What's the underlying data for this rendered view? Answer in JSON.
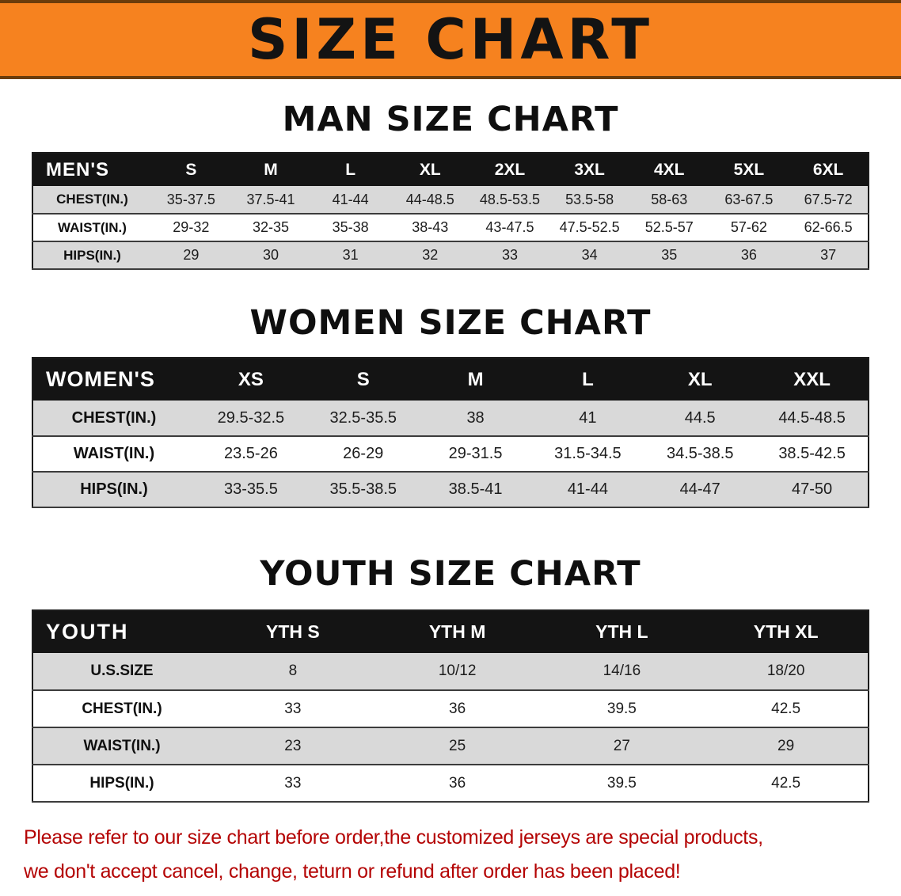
{
  "banner": {
    "title": "SIZE CHART"
  },
  "sections": {
    "men": {
      "heading": "MAN SIZE CHART",
      "table": {
        "label": "MEN'S",
        "columns": [
          "S",
          "M",
          "L",
          "XL",
          "2XL",
          "3XL",
          "4XL",
          "5XL",
          "6XL"
        ],
        "rows": [
          {
            "label": "CHEST(IN.)",
            "values": [
              "35-37.5",
              "37.5-41",
              "41-44",
              "44-48.5",
              "48.5-53.5",
              "53.5-58",
              "58-63",
              "63-67.5",
              "67.5-72"
            ]
          },
          {
            "label": "WAIST(IN.)",
            "values": [
              "29-32",
              "32-35",
              "35-38",
              "38-43",
              "43-47.5",
              "47.5-52.5",
              "52.5-57",
              "57-62",
              "62-66.5"
            ]
          },
          {
            "label": "HIPS(IN.)",
            "values": [
              "29",
              "30",
              "31",
              "32",
              "33",
              "34",
              "35",
              "36",
              "37"
            ]
          }
        ]
      }
    },
    "women": {
      "heading": "WOMEN SIZE CHART",
      "table": {
        "label": "WOMEN'S",
        "columns": [
          "XS",
          "S",
          "M",
          "L",
          "XL",
          "XXL"
        ],
        "rows": [
          {
            "label": "CHEST(IN.)",
            "values": [
              "29.5-32.5",
              "32.5-35.5",
              "38",
              "41",
              "44.5",
              "44.5-48.5"
            ]
          },
          {
            "label": "WAIST(IN.)",
            "values": [
              "23.5-26",
              "26-29",
              "29-31.5",
              "31.5-34.5",
              "34.5-38.5",
              "38.5-42.5"
            ]
          },
          {
            "label": "HIPS(IN.)",
            "values": [
              "33-35.5",
              "35.5-38.5",
              "38.5-41",
              "41-44",
              "44-47",
              "47-50"
            ]
          }
        ]
      }
    },
    "youth": {
      "heading": "YOUTH SIZE CHART",
      "table": {
        "label": "YOUTH",
        "columns": [
          "YTH S",
          "YTH M",
          "YTH L",
          "YTH XL"
        ],
        "rows": [
          {
            "label": "U.S.SIZE",
            "values": [
              "8",
              "10/12",
              "14/16",
              "18/20"
            ]
          },
          {
            "label": "CHEST(IN.)",
            "values": [
              "33",
              "36",
              "39.5",
              "42.5"
            ]
          },
          {
            "label": "WAIST(IN.)",
            "values": [
              "23",
              "25",
              "27",
              "29"
            ]
          },
          {
            "label": "HIPS(IN.)",
            "values": [
              "33",
              "36",
              "39.5",
              "42.5"
            ]
          }
        ]
      }
    }
  },
  "footer": {
    "line1": "Please refer to our size chart before order,the customized jerseys are special products,",
    "line2": "we don't accept cancel, change, teturn or refund after order has been placed!"
  },
  "colors": {
    "banner_orange": "#f6821f",
    "table_header_black": "#141414",
    "row_gray": "#d9d9d9",
    "footer_red": "#b40404"
  }
}
